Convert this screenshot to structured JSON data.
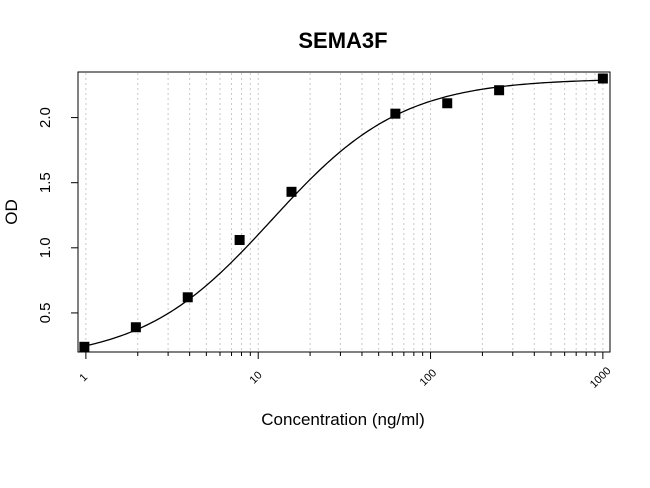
{
  "chart_data": {
    "type": "scatter",
    "title": "SEMA3F",
    "xlabel": "Concentration (ng/ml)",
    "ylabel": "OD",
    "x_scale": "log",
    "xlim": [
      0.9,
      1100
    ],
    "ylim": [
      0.2,
      2.35
    ],
    "x_ticks": [
      1,
      10,
      100,
      1000
    ],
    "x_tick_labels": [
      "1",
      "10",
      "100",
      "1000"
    ],
    "y_ticks": [
      0.5,
      1.0,
      1.5,
      2.0
    ],
    "y_tick_labels": [
      "0.5",
      "1.0",
      "1.5",
      "2.0"
    ],
    "grid": "vertical-dotted",
    "series": [
      {
        "marker": "square",
        "x": [
          0.98,
          1.95,
          3.9,
          7.8,
          15.6,
          62.5,
          125,
          250,
          1000
        ],
        "y": [
          0.24,
          0.39,
          0.62,
          1.06,
          1.43,
          2.03,
          2.11,
          2.21,
          2.3
        ]
      }
    ],
    "fit": {
      "type": "4PL",
      "bottom": 0.13,
      "top": 2.3,
      "ec50": 12,
      "hill": 1.15
    }
  }
}
